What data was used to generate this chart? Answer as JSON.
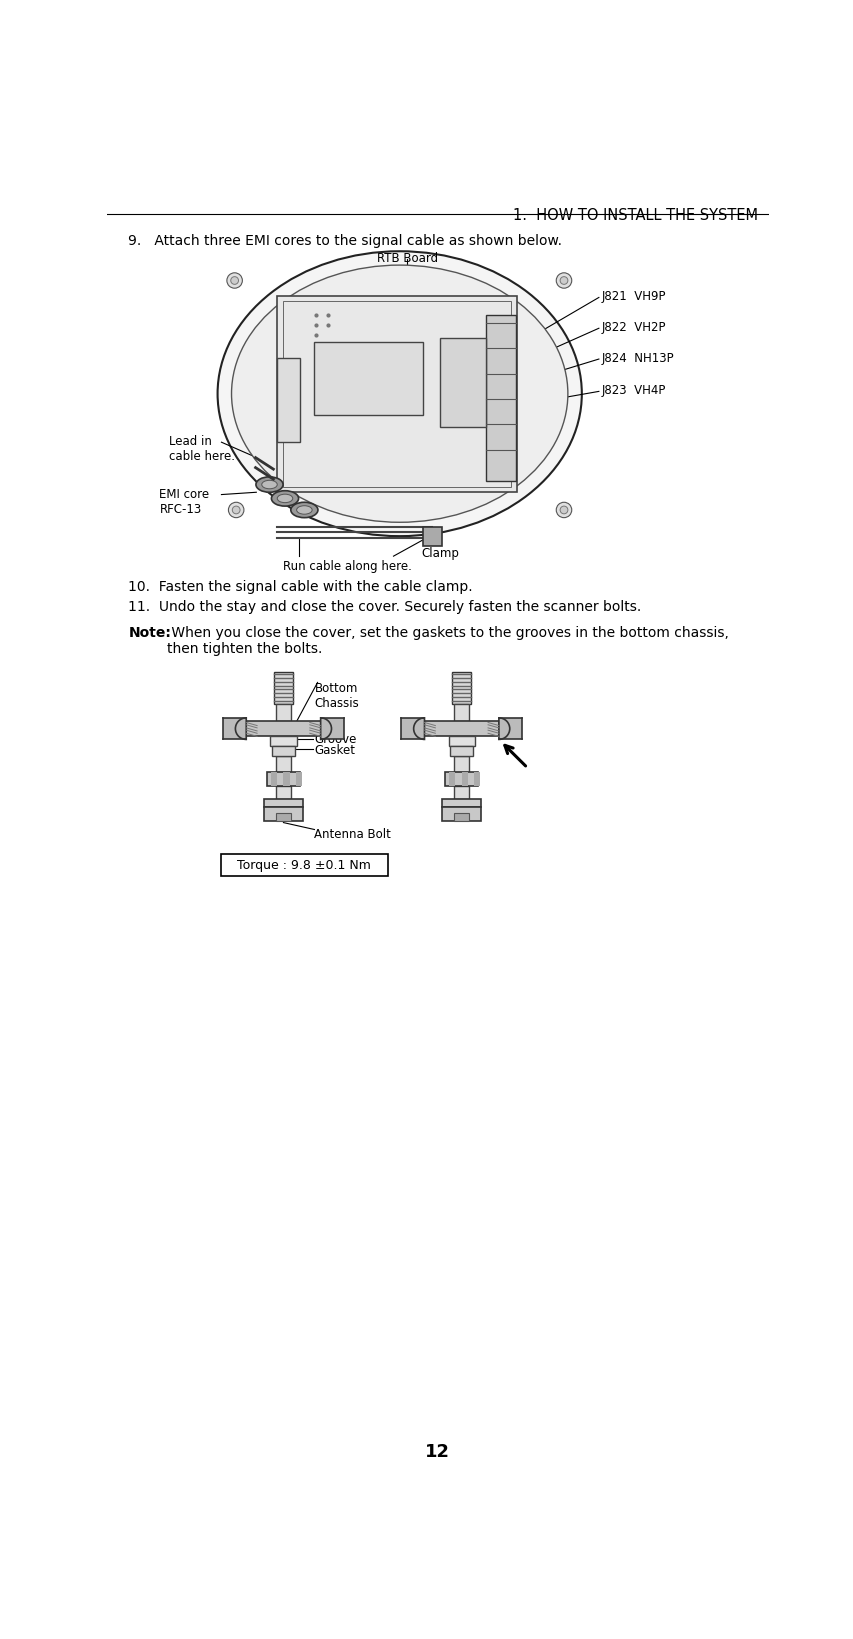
{
  "header": "1.  HOW TO INSTALL THE SYSTEM",
  "step9_text": "9.   Attach three EMI cores to the signal cable as shown below.",
  "step10_text": "10.  Fasten the signal cable with the cable clamp.",
  "step11_text": "11.  Undo the stay and close the cover. Securely fasten the scanner bolts.",
  "note_bold": "Note:",
  "note_text": " When you close the cover, set the gaskets to the grooves in the bottom chassis,\nthen tighten the bolts.",
  "page_number": "12",
  "label_rtb": "RTB Board",
  "label_j821": "J821  VH9P",
  "label_j822": "J822  VH2P",
  "label_j824": "J824  NH13P",
  "label_j823": "J823  VH4P",
  "label_lead": "Lead in\ncable here.",
  "label_emi": "EMI core\nRFC-13",
  "label_clamp": "Clamp",
  "label_run": "Run cable along here.",
  "label_bottom_chassis": "Bottom\nChassis",
  "label_groove": "Groove",
  "label_gasket": "Gasket",
  "label_antenna_bolt": "Antenna Bolt",
  "label_torque": "Torque : 9.8 ±0.1 Nm",
  "bg_color": "#ffffff",
  "text_color": "#000000",
  "font_size_header": 10.5,
  "font_size_body": 10,
  "font_size_label": 8.5,
  "font_size_page": 13
}
